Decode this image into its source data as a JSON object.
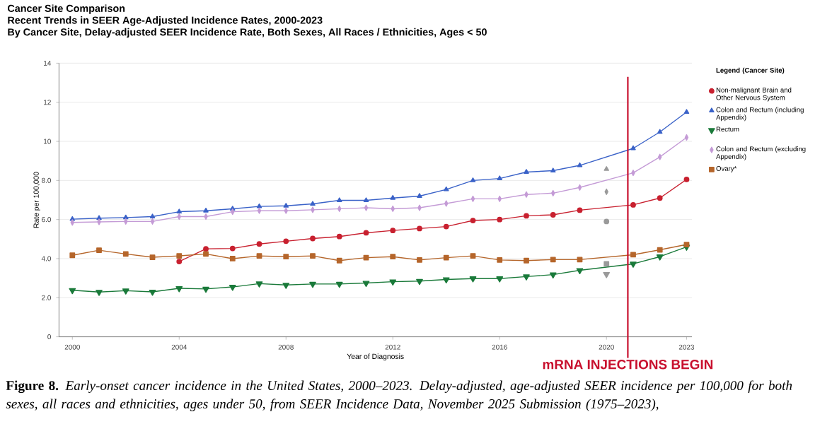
{
  "chart_data": {
    "type": "line",
    "title": "Cancer Site Comparison",
    "subtitle": "Recent Trends in SEER Age-Adjusted Incidence Rates, 2000-2023",
    "annotations": [
      "By Cancer Site, Delay-adjusted SEER Incidence Rate, Both Sexes, All Races / Ethnicities, Ages < 50",
      "**Figure 8.** *Early-onset cancer incidence in the United States, 2000–2023. Delay-adjusted, age-adjusted SEER incidence per 100,000 for both sexes, all races and ethnicities, ages under 50, from SEER Incidence Data, November 2025 Submission (1975–2023),*"
    ],
    "xlabel": "Year of Diagnosis",
    "ylabel": "Rate per 100,000",
    "legend_title": "Legend (Cancer Site)",
    "x": [
      2000,
      2001,
      2002,
      2003,
      2004,
      2005,
      2006,
      2007,
      2008,
      2009,
      2010,
      2011,
      2012,
      2013,
      2014,
      2015,
      2016,
      2017,
      2018,
      2019,
      2020,
      2021,
      2022,
      2023
    ],
    "series": [
      {
        "name": "Non-malignant Brain and Other Nervous System",
        "color": "#c8202f",
        "marker": "circle",
        "values": [
          null,
          null,
          null,
          null,
          3.85,
          4.5,
          4.52,
          4.75,
          4.89,
          5.03,
          5.13,
          5.32,
          5.44,
          5.54,
          5.64,
          5.95,
          6.0,
          6.19,
          6.24,
          6.48,
          null,
          6.75,
          7.1,
          8.05
        ]
      },
      {
        "name": "Colon and Rectum (including Appendix)",
        "color": "#3a62c8",
        "marker": "triangle",
        "values": [
          6.02,
          6.07,
          6.1,
          6.15,
          6.4,
          6.45,
          6.55,
          6.67,
          6.7,
          6.8,
          6.98,
          6.98,
          7.1,
          7.2,
          7.54,
          8.0,
          8.1,
          8.43,
          8.5,
          8.77,
          null,
          9.64,
          10.48,
          11.5
        ]
      },
      {
        "name": "Rectum",
        "color": "#1a7a3a",
        "marker": "triangle-down",
        "values": [
          2.38,
          2.29,
          2.36,
          2.3,
          2.48,
          2.45,
          2.55,
          2.72,
          2.65,
          2.7,
          2.7,
          2.75,
          2.82,
          2.85,
          2.93,
          2.98,
          2.98,
          3.08,
          3.18,
          3.4,
          null,
          3.73,
          4.1,
          4.6
        ]
      },
      {
        "name": "Colon and Rectum (excluding Appendix)",
        "color": "#c49bd6",
        "marker": "diamond",
        "values": [
          5.85,
          5.88,
          5.9,
          5.9,
          6.15,
          6.15,
          6.4,
          6.45,
          6.45,
          6.5,
          6.55,
          6.6,
          6.55,
          6.6,
          6.82,
          7.06,
          7.06,
          7.28,
          7.35,
          7.64,
          null,
          8.39,
          9.2,
          10.2
        ]
      },
      {
        "name": "Ovary*",
        "color": "#b5652a",
        "marker": "square",
        "values": [
          4.17,
          4.43,
          4.24,
          4.07,
          4.14,
          4.24,
          4.0,
          4.14,
          4.1,
          4.14,
          3.9,
          4.05,
          4.1,
          3.93,
          4.05,
          4.14,
          3.93,
          3.9,
          3.95,
          3.95,
          null,
          4.2,
          4.45,
          4.72
        ]
      },
      {
        "type": "scatter",
        "color": "#9a9a9a",
        "marker": "circle",
        "values": [
          null,
          null,
          null,
          null,
          null,
          null,
          null,
          null,
          null,
          null,
          null,
          null,
          null,
          null,
          null,
          null,
          null,
          null,
          null,
          null,
          5.9,
          null,
          null,
          null
        ]
      },
      {
        "type": "scatter",
        "color": "#9a9a9a",
        "marker": "triangle",
        "values": [
          null,
          null,
          null,
          null,
          null,
          null,
          null,
          null,
          null,
          null,
          null,
          null,
          null,
          null,
          null,
          null,
          null,
          null,
          null,
          null,
          8.58,
          null,
          null,
          null
        ]
      },
      {
        "type": "scatter",
        "color": "#9a9a9a",
        "marker": "triangle-down",
        "values": [
          null,
          null,
          null,
          null,
          null,
          null,
          null,
          null,
          null,
          null,
          null,
          null,
          null,
          null,
          null,
          null,
          null,
          null,
          null,
          null,
          3.2,
          null,
          null,
          null
        ]
      },
      {
        "type": "scatter",
        "color": "#9a9a9a",
        "marker": "diamond",
        "values": [
          null,
          null,
          null,
          null,
          null,
          null,
          null,
          null,
          null,
          null,
          null,
          null,
          null,
          null,
          null,
          null,
          null,
          null,
          null,
          null,
          7.42,
          null,
          null,
          null
        ]
      },
      {
        "type": "scatter",
        "color": "#9a9a9a",
        "marker": "square",
        "values": [
          null,
          null,
          null,
          null,
          null,
          null,
          null,
          null,
          null,
          null,
          null,
          null,
          null,
          null,
          null,
          null,
          null,
          null,
          null,
          null,
          3.73,
          null,
          null,
          null
        ]
      }
    ],
    "xlim": [
      1999.5,
      2023.2
    ],
    "xticks": [
      2000,
      2004,
      2008,
      2012,
      2016,
      2020,
      2023
    ],
    "ylim": [
      0,
      14
    ],
    "yticks": [
      0,
      {
        "value": 2,
        "label": "2.0"
      },
      {
        "value": 4,
        "label": "4.0"
      },
      {
        "value": 6,
        "label": "6.0"
      },
      {
        "value": 8,
        "label": "8.0"
      },
      10,
      12,
      14
    ],
    "ref_lines": [
      {
        "axis": "x",
        "value": 2020.8,
        "label": "mRNA INJECTIONS BEGIN",
        "color": "#c8102e"
      }
    ],
    "grid": "y",
    "legend": "right"
  }
}
